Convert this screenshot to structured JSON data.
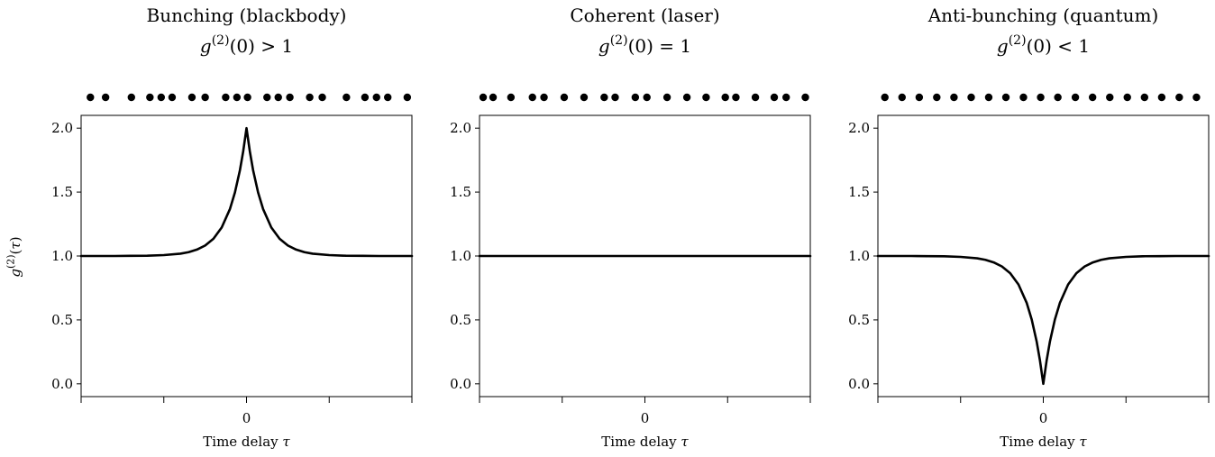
{
  "figure": {
    "ink_color": "#000000",
    "background_color": "#ffffff"
  },
  "chart_data": [
    {
      "type": "line",
      "title": "Bunching (blackbody)",
      "subtitle": "g(2)(0) > 1",
      "xlabel": "Time delay τ",
      "ylabel": "g(2)(τ)",
      "xlim": [
        -1,
        1
      ],
      "ylim": [
        -0.1,
        2.1
      ],
      "x_tick_labels": [
        {
          "x": 0,
          "label": "0"
        }
      ],
      "x_minor_ticks": [
        -1,
        -0.5,
        0.5,
        1
      ],
      "y_ticks": [
        {
          "y": 0.0,
          "label": "0.0"
        },
        {
          "y": 0.5,
          "label": "0.5"
        },
        {
          "y": 1.0,
          "label": "1.0"
        },
        {
          "y": 1.5,
          "label": "1.5"
        },
        {
          "y": 2.0,
          "label": "2.0"
        }
      ],
      "series": [
        {
          "x": [
            -1,
            -0.9,
            -0.8,
            -0.7,
            -0.6,
            -0.5,
            -0.4,
            -0.35,
            -0.3,
            -0.25,
            -0.2,
            -0.15,
            -0.1,
            -0.07,
            -0.04,
            -0.02,
            0,
            0.02,
            0.04,
            0.07,
            0.1,
            0.15,
            0.2,
            0.25,
            0.3,
            0.35,
            0.4,
            0.5,
            0.6,
            0.7,
            0.8,
            0.9,
            1
          ],
          "y": [
            1.0,
            1.0,
            1.0,
            1.001,
            1.002,
            1.007,
            1.018,
            1.03,
            1.05,
            1.082,
            1.135,
            1.223,
            1.368,
            1.497,
            1.67,
            1.819,
            2.0,
            1.819,
            1.67,
            1.497,
            1.368,
            1.223,
            1.135,
            1.082,
            1.05,
            1.03,
            1.018,
            1.007,
            1.002,
            1.001,
            1.0,
            1.0,
            1.0
          ]
        }
      ],
      "photon_dots": [
        0.028,
        0.074,
        0.152,
        0.208,
        0.242,
        0.275,
        0.335,
        0.375,
        0.437,
        0.471,
        0.503,
        0.562,
        0.596,
        0.631,
        0.691,
        0.729,
        0.802,
        0.858,
        0.893,
        0.927,
        0.986
      ]
    },
    {
      "type": "line",
      "title": "Coherent (laser)",
      "subtitle": "g(2)(0) = 1",
      "xlabel": "Time delay τ",
      "ylabel": "",
      "xlim": [
        -1,
        1
      ],
      "ylim": [
        -0.1,
        2.1
      ],
      "x_tick_labels": [
        {
          "x": 0,
          "label": "0"
        }
      ],
      "x_minor_ticks": [
        -1,
        -0.5,
        0.5,
        1
      ],
      "y_ticks": [
        {
          "y": 0.0,
          "label": "0.0"
        },
        {
          "y": 0.5,
          "label": "0.5"
        },
        {
          "y": 1.0,
          "label": "1.0"
        },
        {
          "y": 1.5,
          "label": "1.5"
        },
        {
          "y": 2.0,
          "label": "2.0"
        }
      ],
      "series": [
        {
          "x": [
            -1,
            1
          ],
          "y": [
            1.0,
            1.0
          ]
        }
      ],
      "photon_dots": [
        0.011,
        0.041,
        0.095,
        0.16,
        0.195,
        0.256,
        0.316,
        0.377,
        0.41,
        0.471,
        0.506,
        0.567,
        0.627,
        0.685,
        0.743,
        0.775,
        0.834,
        0.891,
        0.927,
        0.985
      ]
    },
    {
      "type": "line",
      "title": "Anti-bunching (quantum)",
      "subtitle": "g(2)(0) < 1",
      "xlabel": "Time delay τ",
      "ylabel": "",
      "xlim": [
        -1,
        1
      ],
      "ylim": [
        -0.1,
        2.1
      ],
      "x_tick_labels": [
        {
          "x": 0,
          "label": "0"
        }
      ],
      "x_minor_ticks": [
        -1,
        -0.5,
        0.5,
        1
      ],
      "y_ticks": [
        {
          "y": 0.0,
          "label": "0.0"
        },
        {
          "y": 0.5,
          "label": "0.5"
        },
        {
          "y": 1.0,
          "label": "1.0"
        },
        {
          "y": 1.5,
          "label": "1.5"
        },
        {
          "y": 2.0,
          "label": "2.0"
        }
      ],
      "series": [
        {
          "x": [
            -1,
            -0.9,
            -0.8,
            -0.7,
            -0.6,
            -0.5,
            -0.4,
            -0.35,
            -0.3,
            -0.25,
            -0.2,
            -0.15,
            -0.1,
            -0.07,
            -0.04,
            -0.02,
            0,
            0.02,
            0.04,
            0.07,
            0.1,
            0.15,
            0.2,
            0.25,
            0.3,
            0.35,
            0.4,
            0.5,
            0.6,
            0.7,
            0.8,
            0.9,
            1
          ],
          "y": [
            1.0,
            1.0,
            1.0,
            0.999,
            0.998,
            0.993,
            0.982,
            0.97,
            0.95,
            0.918,
            0.865,
            0.777,
            0.632,
            0.503,
            0.33,
            0.181,
            0.0,
            0.181,
            0.33,
            0.503,
            0.632,
            0.777,
            0.865,
            0.918,
            0.95,
            0.97,
            0.982,
            0.993,
            0.998,
            0.999,
            1.0,
            1.0,
            1.0
          ]
        }
      ],
      "photon_dots": [
        0.021,
        0.073,
        0.125,
        0.178,
        0.23,
        0.282,
        0.335,
        0.387,
        0.44,
        0.492,
        0.544,
        0.597,
        0.649,
        0.701,
        0.754,
        0.806,
        0.858,
        0.911,
        0.963
      ]
    }
  ]
}
